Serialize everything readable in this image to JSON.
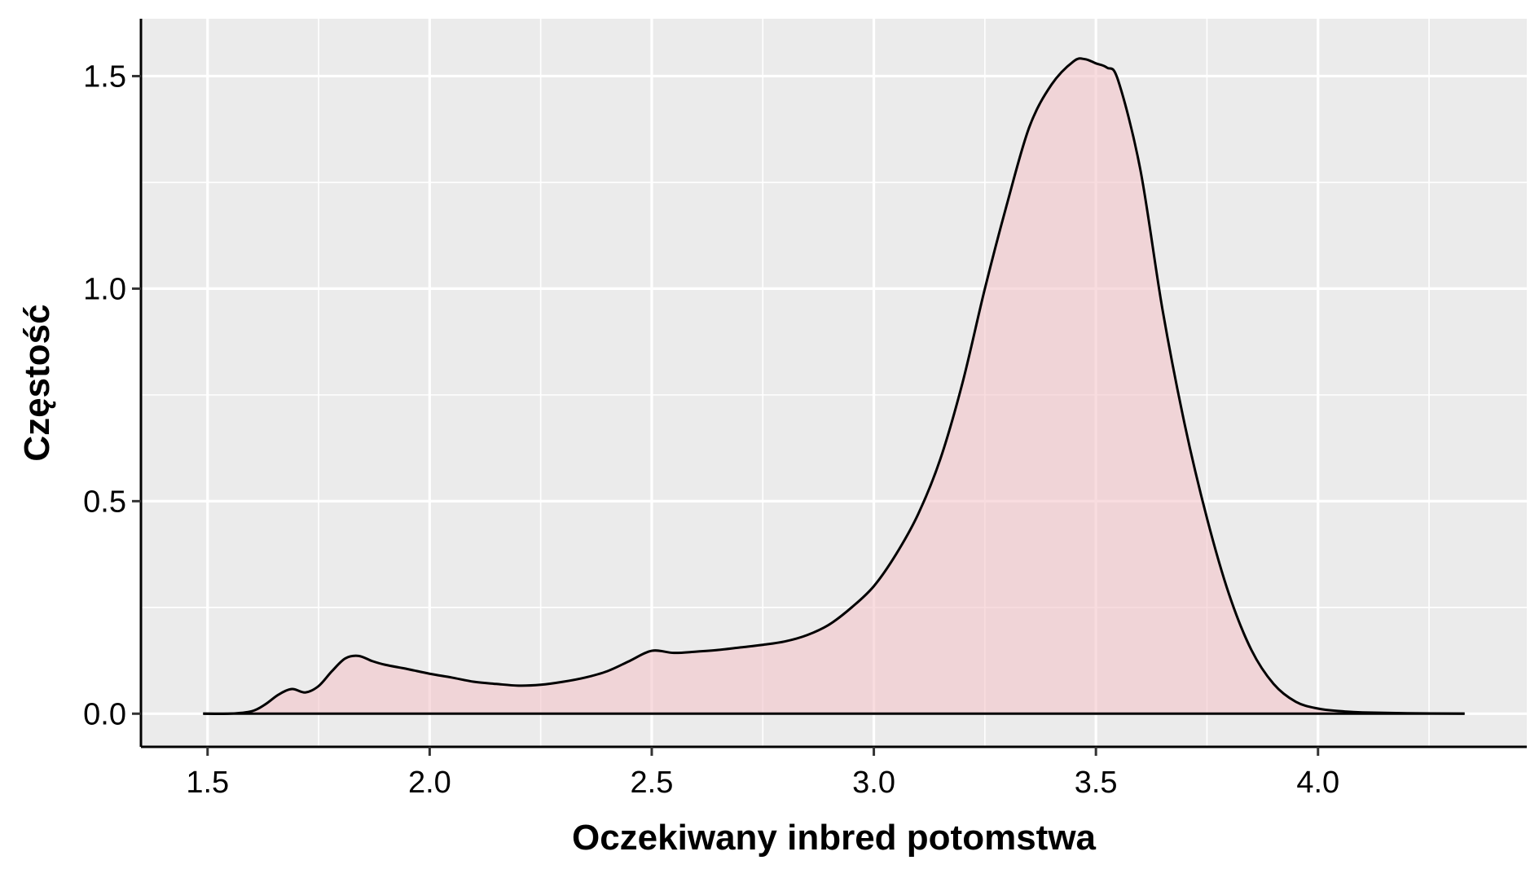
{
  "chart_data": {
    "type": "area",
    "title": "",
    "xlabel": "Oczekiwany inbred potomstwa",
    "ylabel": "Częstość",
    "xlim": [
      1.35,
      4.47
    ],
    "ylim": [
      -0.078,
      1.635
    ],
    "x_ticks": [
      1.5,
      2.0,
      2.5,
      3.0,
      3.5,
      4.0
    ],
    "x_tick_labels": [
      "1.5",
      "2.0",
      "2.5",
      "3.0",
      "3.5",
      "4.0"
    ],
    "y_ticks": [
      0.0,
      0.5,
      1.0,
      1.5
    ],
    "y_tick_labels": [
      "0.0",
      "0.5",
      "1.0",
      "1.5"
    ],
    "x_minor_ticks": [
      1.75,
      2.25,
      2.75,
      3.25,
      3.75,
      4.25
    ],
    "y_minor_ticks": [
      0.25,
      0.75,
      1.25
    ],
    "grid": true,
    "legend": "none",
    "colors": {
      "panel_background": "#EBEBEB",
      "grid": "#FFFFFF",
      "fill": "#F4C7CC",
      "line": "#000000"
    },
    "series": [
      {
        "x": [
          1.49,
          1.55,
          1.6,
          1.63,
          1.66,
          1.69,
          1.72,
          1.75,
          1.78,
          1.81,
          1.84,
          1.87,
          1.9,
          1.95,
          2.0,
          2.05,
          2.1,
          2.15,
          2.2,
          2.25,
          2.3,
          2.35,
          2.4,
          2.45,
          2.5,
          2.55,
          2.6,
          2.65,
          2.7,
          2.75,
          2.8,
          2.85,
          2.9,
          2.95,
          3.0,
          3.05,
          3.1,
          3.15,
          3.2,
          3.25,
          3.3,
          3.35,
          3.4,
          3.45,
          3.475,
          3.5,
          3.525,
          3.55,
          3.6,
          3.65,
          3.7,
          3.75,
          3.8,
          3.85,
          3.9,
          3.95,
          4.0,
          4.05,
          4.1,
          4.2,
          4.33
        ],
        "y": [
          0.0,
          0.0,
          0.006,
          0.022,
          0.045,
          0.058,
          0.05,
          0.065,
          0.1,
          0.13,
          0.136,
          0.124,
          0.115,
          0.105,
          0.094,
          0.085,
          0.075,
          0.07,
          0.066,
          0.068,
          0.075,
          0.085,
          0.1,
          0.124,
          0.148,
          0.143,
          0.146,
          0.15,
          0.156,
          0.162,
          0.17,
          0.185,
          0.21,
          0.25,
          0.3,
          0.375,
          0.47,
          0.6,
          0.78,
          1.0,
          1.2,
          1.38,
          1.48,
          1.535,
          1.54,
          1.53,
          1.52,
          1.49,
          1.28,
          0.95,
          0.68,
          0.46,
          0.28,
          0.15,
          0.07,
          0.028,
          0.012,
          0.006,
          0.003,
          0.001,
          0.0
        ]
      }
    ]
  }
}
